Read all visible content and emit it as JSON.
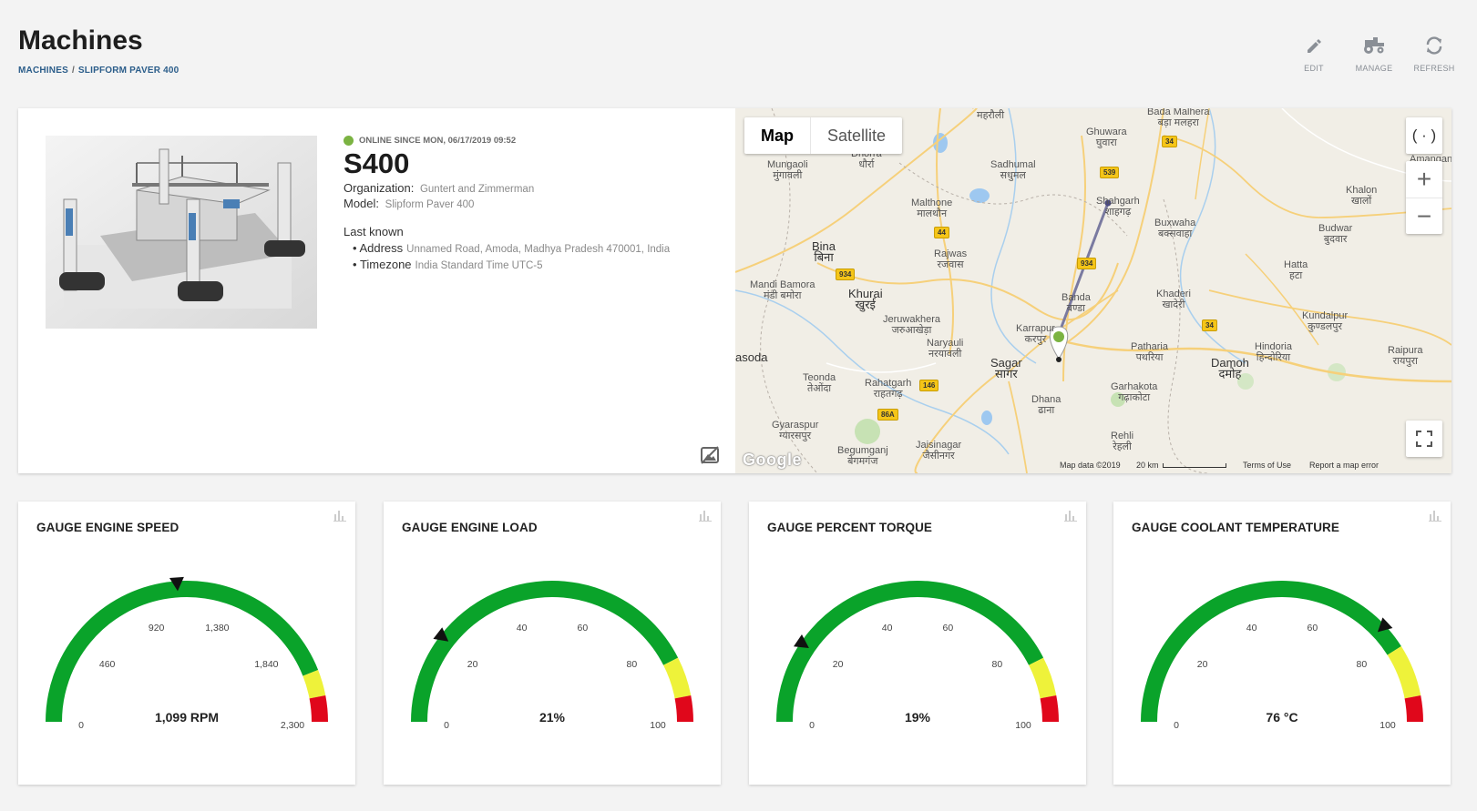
{
  "header": {
    "title": "Machines",
    "breadcrumb": [
      "MACHINES",
      "SLIPFORM PAVER 400"
    ],
    "actions": [
      {
        "label": "EDIT",
        "icon": "pencil-icon"
      },
      {
        "label": "MANAGE",
        "icon": "tractor-icon"
      },
      {
        "label": "REFRESH",
        "icon": "refresh-icon"
      }
    ]
  },
  "machine": {
    "status": "ONLINE SINCE MON, 06/17/2019 09:52",
    "status_color": "#7bb342",
    "name": "S400",
    "organization_label": "Organization:",
    "organization": "Guntert and Zimmerman",
    "model_label": "Model:",
    "model": "Slipform Paver 400",
    "last_known_label": "Last known",
    "address_label": "Address",
    "address": "Unnamed Road, Amoda, Madhya Pradesh 470001, India",
    "timezone_label": "Timezone",
    "timezone": "India Standard Time UTC-5"
  },
  "map": {
    "type_buttons": [
      "Map",
      "Satellite"
    ],
    "active_type": "Map",
    "places": {
      "mahrauli": "महरौली",
      "bada_malhera": "Bada Malhera",
      "bada_malhera_hi": "बड़ा मलहरा",
      "ghuwara": "Ghuwara",
      "ghuwara_hi": "घुवारा",
      "mungaoli": "Mungaoli",
      "mungaoli_hi": "मुंगावली",
      "dhorra": "Dhorra",
      "dhorra_hi": "धौर्रा",
      "sadhumal": "Sadhumal",
      "sadhumal_hi": "सधुमल",
      "malthone": "Malthone",
      "malthone_hi": "मालथौन",
      "shahgarh": "Shahgarh",
      "shahgarh_hi": "शाहगढ़",
      "buxwaha": "Buxwaha",
      "buxwaha_hi": "बक्सवाहा",
      "khalon": "Khalon",
      "khalon_hi": "खालों",
      "budwar": "Budwar",
      "budwar_hi": "बुदवार",
      "bina": "Bina",
      "bina_hi": "बिना",
      "rajwas": "Rajwas",
      "rajwas_hi": "रजवास",
      "hatta": "Hatta",
      "hatta_hi": "हटा",
      "mandi_bamora": "Mandi Bamora",
      "mandi_bamora_hi": "मंडी बमोरा",
      "khurai": "Khurai",
      "khurai_hi": "खुरई",
      "banda": "Banda",
      "banda_hi": "बण्डा",
      "khaderi": "Khaderi",
      "khaderi_hi": "खादेरी",
      "kundalpur": "Kundalpur",
      "kundalpur_hi": "कुण्डलपुर",
      "jeruwakhera": "Jeruwakhera",
      "jeruwakhera_hi": "जरुआखेड़ा",
      "karrapur": "Karrapur",
      "karrapur_hi": "करपुर",
      "naryauli": "Naryauli",
      "naryauli_hi": "नरयावली",
      "patharia": "Patharia",
      "patharia_hi": "पथरिया",
      "hindoria": "Hindoria",
      "hindoria_hi": "हिन्दोरिया",
      "raipura": "Raipura",
      "raipura_hi": "रायपुरा",
      "asoda": "asoda",
      "sagar": "Sagar",
      "sagar_hi": "सागर",
      "damoh": "Damoh",
      "damoh_hi": "दमोह",
      "teonda": "Teonda",
      "teonda_hi": "तेओंदा",
      "rahatgarh": "Rahatgarh",
      "rahatgarh_hi": "राहतगढ़",
      "garhakota": "Garhakota",
      "garhakota_hi": "गढ़ाकोटा",
      "dhana": "Dhana",
      "dhana_hi": "ढाना",
      "gyaraspur": "Gyaraspur",
      "gyaraspur_hi": "ग्यारसपुर",
      "rehli": "Rehli",
      "rehli_hi": "रेहली",
      "begumganj": "Begumganj",
      "begumganj_hi": "बेगमगंज",
      "jaisinagar": "Jaisinagar",
      "jaisinagar_hi": "जैसीनगर",
      "amanganj": "Amangan"
    },
    "shields": [
      "34",
      "539",
      "44",
      "934",
      "934",
      "34",
      "146",
      "86A"
    ],
    "google_logo": "Google",
    "map_data": "Map data ©2019",
    "scale": "20 km",
    "terms": "Terms of Use",
    "report": "Report a map error",
    "zoom_in": "+",
    "zoom_out": "−"
  },
  "gauges": [
    {
      "title": "GAUGE ENGINE SPEED",
      "value_text": "1,099 RPM",
      "value": 1099,
      "min": 0,
      "max": 2300,
      "ticks": [
        "0",
        "460",
        "920",
        "1,380",
        "1,840",
        "2,300"
      ],
      "yellow_from": 0.88,
      "red_from": 0.94
    },
    {
      "title": "GAUGE ENGINE LOAD",
      "value_text": "21%",
      "value": 21,
      "min": 0,
      "max": 100,
      "ticks": [
        "0",
        "20",
        "40",
        "60",
        "80",
        "100"
      ],
      "yellow_from": 0.85,
      "red_from": 0.94
    },
    {
      "title": "GAUGE PERCENT TORQUE",
      "value_text": "19%",
      "value": 19,
      "min": 0,
      "max": 100,
      "ticks": [
        "0",
        "20",
        "40",
        "60",
        "80",
        "100"
      ],
      "yellow_from": 0.85,
      "red_from": 0.94
    },
    {
      "title": "GAUGE COOLANT TEMPERATURE",
      "value_text": "76 °C",
      "value": 76,
      "min": 0,
      "max": 100,
      "ticks": [
        "0",
        "20",
        "40",
        "60",
        "80",
        "100"
      ],
      "yellow_from": 0.82,
      "red_from": 0.94
    }
  ],
  "colors": {
    "green": "#0aa32a",
    "yellow": "#eef23a",
    "red": "#e0071b",
    "accent": "#2b5d8a"
  }
}
